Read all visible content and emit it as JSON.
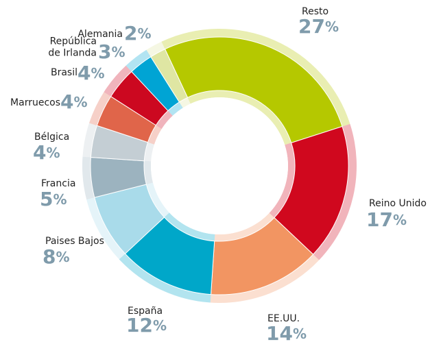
{
  "chart_data": {
    "type": "donut",
    "categories": [
      "Resto",
      "Reino Unido",
      "EE.UU.",
      "España",
      "Paises Bajos",
      "Francia",
      "Bélgica",
      "Marruecos",
      "Brasil",
      "República\nde Irlanda",
      "Alemania"
    ],
    "values": [
      27,
      17,
      14,
      12,
      8,
      5,
      4,
      4,
      4,
      3,
      2
    ],
    "value_labels": [
      "27%",
      "17%",
      "14%",
      "12%",
      "8%",
      "5%",
      "4%",
      "4%",
      "4%",
      "3%",
      "2%"
    ],
    "colors": [
      "#b5c800",
      "#d0081e",
      "#f29562",
      "#00a7c9",
      "#a9dbea",
      "#9cb3bf",
      "#c4ced4",
      "#e0654a",
      "#cc0820",
      "#00a4d4",
      "#dfe6a3"
    ]
  }
}
